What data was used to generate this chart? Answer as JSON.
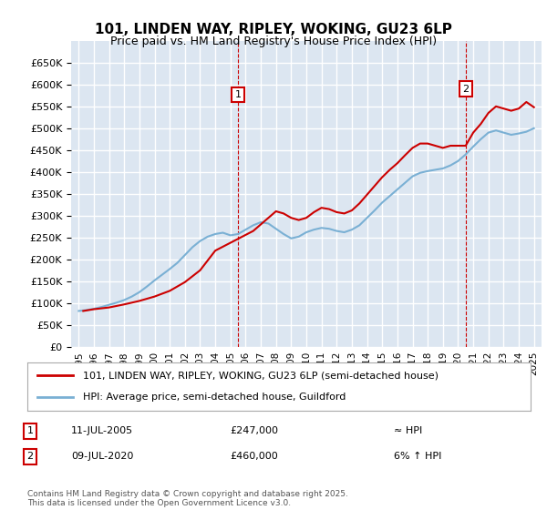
{
  "title": "101, LINDEN WAY, RIPLEY, WOKING, GU23 6LP",
  "subtitle": "Price paid vs. HM Land Registry's House Price Index (HPI)",
  "legend_line1": "101, LINDEN WAY, RIPLEY, WOKING, GU23 6LP (semi-detached house)",
  "legend_line2": "HPI: Average price, semi-detached house, Guildford",
  "footnote": "Contains HM Land Registry data © Crown copyright and database right 2025.\nThis data is licensed under the Open Government Licence v3.0.",
  "annotation1": {
    "label": "1",
    "date": "11-JUL-2005",
    "price": "£247,000",
    "note": "≈ HPI"
  },
  "annotation2": {
    "label": "2",
    "date": "09-JUL-2020",
    "price": "£460,000",
    "note": "6% ↑ HPI"
  },
  "ylim": [
    0,
    700000
  ],
  "yticks": [
    0,
    50000,
    100000,
    150000,
    200000,
    250000,
    300000,
    350000,
    400000,
    450000,
    500000,
    550000,
    600000,
    650000
  ],
  "background_color": "#dce6f1",
  "plot_bg": "#dce6f1",
  "grid_color": "#ffffff",
  "line_color_red": "#cc0000",
  "line_color_blue": "#7ab0d4",
  "ann_box_color": "#cc0000",
  "hpi_series_x": [
    1995,
    1995.5,
    1996,
    1996.5,
    1997,
    1997.5,
    1998,
    1998.5,
    1999,
    1999.5,
    2000,
    2000.5,
    2001,
    2001.5,
    2002,
    2002.5,
    2003,
    2003.5,
    2004,
    2004.5,
    2005,
    2005.5,
    2006,
    2006.5,
    2007,
    2007.5,
    2008,
    2008.5,
    2009,
    2009.5,
    2010,
    2010.5,
    2011,
    2011.5,
    2012,
    2012.5,
    2013,
    2013.5,
    2014,
    2014.5,
    2015,
    2015.5,
    2016,
    2016.5,
    2017,
    2017.5,
    2018,
    2018.5,
    2019,
    2019.5,
    2020,
    2020.5,
    2021,
    2021.5,
    2022,
    2022.5,
    2023,
    2023.5,
    2024,
    2024.5,
    2025
  ],
  "hpi_series_y": [
    82000,
    84000,
    87000,
    91000,
    96000,
    101000,
    107000,
    115000,
    125000,
    138000,
    152000,
    165000,
    178000,
    192000,
    210000,
    228000,
    242000,
    252000,
    258000,
    261000,
    255000,
    258000,
    268000,
    278000,
    285000,
    282000,
    270000,
    258000,
    248000,
    252000,
    262000,
    268000,
    272000,
    270000,
    265000,
    262000,
    268000,
    278000,
    295000,
    312000,
    330000,
    345000,
    360000,
    375000,
    390000,
    398000,
    402000,
    405000,
    408000,
    415000,
    425000,
    440000,
    458000,
    475000,
    490000,
    495000,
    490000,
    485000,
    488000,
    492000,
    500000
  ],
  "price_series_x": [
    1995.3,
    1996.0,
    1997.0,
    1998.0,
    1999.0,
    2000.0,
    2001.0,
    2002.0,
    2003.0,
    2004.0,
    2005.5,
    2006.5,
    2007.0,
    2007.5,
    2008.0,
    2008.5,
    2009.0,
    2009.5,
    2010.0,
    2010.5,
    2011.0,
    2011.5,
    2012.0,
    2012.5,
    2013.0,
    2013.5,
    2014.0,
    2014.5,
    2015.0,
    2015.5,
    2016.0,
    2016.5,
    2017.0,
    2017.5,
    2018.0,
    2018.5,
    2019.0,
    2019.5,
    2020.5,
    2021.0,
    2021.5,
    2022.0,
    2022.5,
    2023.0,
    2023.5,
    2024.0,
    2024.5,
    2025.0
  ],
  "price_series_y": [
    82000,
    86000,
    90000,
    97000,
    105000,
    115000,
    128000,
    148000,
    175000,
    220000,
    247000,
    265000,
    280000,
    295000,
    310000,
    305000,
    295000,
    290000,
    295000,
    308000,
    318000,
    315000,
    308000,
    305000,
    312000,
    328000,
    348000,
    368000,
    388000,
    405000,
    420000,
    438000,
    455000,
    465000,
    465000,
    460000,
    455000,
    460000,
    460000,
    490000,
    510000,
    535000,
    550000,
    545000,
    540000,
    545000,
    560000,
    548000
  ],
  "ann1_x": 2005.5,
  "ann1_y": 247000,
  "ann2_x": 2020.5,
  "ann2_y": 460000,
  "ann1_vline_x": 2005.5,
  "ann2_vline_x": 2020.5,
  "xmin": 1994.5,
  "xmax": 2025.5
}
